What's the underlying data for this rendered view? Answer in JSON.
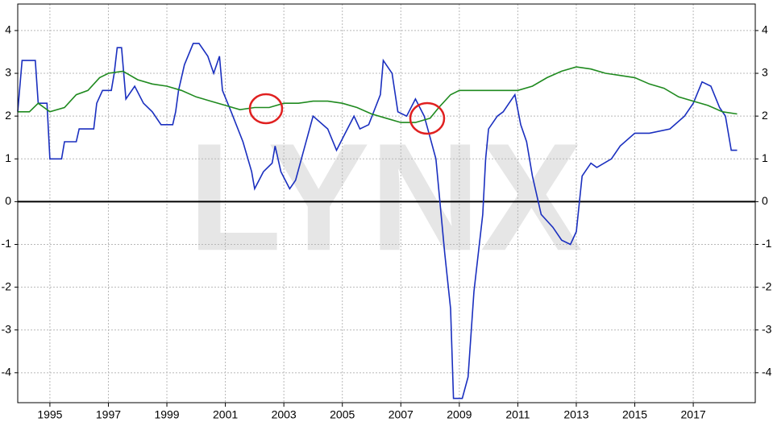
{
  "chart_data": {
    "type": "line",
    "watermark": "LYNX",
    "xlim": [
      1993.9,
      2019.12
    ],
    "xticks": [
      1995,
      1997,
      1999,
      2001,
      2003,
      2005,
      2007,
      2009,
      2011,
      2013,
      2015,
      2017
    ],
    "ylim": [
      -4.7,
      4.62
    ],
    "yticks": [
      -4,
      -3,
      -2,
      -1,
      0,
      1,
      2,
      3,
      4
    ],
    "grid": true,
    "series": [
      {
        "color": "#1a2fbf",
        "x": [
          1993.9,
          1994.05,
          1994.5,
          1994.6,
          1994.9,
          1995.0,
          1995.4,
          1995.5,
          1995.9,
          1996.0,
          1996.5,
          1996.6,
          1996.8,
          1997.1,
          1997.2,
          1997.3,
          1997.45,
          1997.6,
          1997.9,
          1998.2,
          1998.5,
          1998.8,
          1999.2,
          1999.3,
          1999.4,
          1999.6,
          1999.9,
          2000.1,
          2000.4,
          2000.6,
          2000.8,
          2000.9,
          2001.2,
          2001.6,
          2001.9,
          2002.0,
          2002.3,
          2002.6,
          2002.7,
          2002.9,
          2003.2,
          2003.4,
          2003.6,
          2004.0,
          2004.5,
          2004.8,
          2005.1,
          2005.4,
          2005.6,
          2005.9,
          2006.3,
          2006.4,
          2006.7,
          2006.9,
          2007.2,
          2007.5,
          2007.8,
          2008.0,
          2008.2,
          2008.5,
          2008.7,
          2008.8,
          2009.1,
          2009.3,
          2009.5,
          2009.8,
          2009.9,
          2010.0,
          2010.3,
          2010.5,
          2010.8,
          2010.9,
          2011.1,
          2011.3,
          2011.5,
          2011.8,
          2012.2,
          2012.5,
          2012.8,
          2013.0,
          2013.2,
          2013.5,
          2013.7,
          2014.2,
          2014.5,
          2015.0,
          2015.5,
          2016.2,
          2016.7,
          2017.0,
          2017.3,
          2017.6,
          2017.9,
          2018.1,
          2018.2,
          2018.3,
          2018.5
        ],
        "values": [
          2.1,
          3.3,
          3.3,
          2.3,
          2.3,
          1.0,
          1.0,
          1.4,
          1.4,
          1.7,
          1.7,
          2.3,
          2.6,
          2.6,
          3.0,
          3.6,
          3.6,
          2.4,
          2.7,
          2.3,
          2.1,
          1.8,
          1.8,
          2.1,
          2.6,
          3.2,
          3.7,
          3.7,
          3.4,
          3.0,
          3.4,
          2.6,
          2.1,
          1.4,
          0.7,
          0.3,
          0.7,
          0.9,
          1.3,
          0.7,
          0.3,
          0.5,
          1.0,
          2.0,
          1.7,
          1.2,
          1.6,
          2.0,
          1.7,
          1.8,
          2.5,
          3.3,
          3.0,
          2.1,
          2.0,
          2.4,
          2.0,
          1.5,
          1.0,
          -1.2,
          -2.5,
          -4.6,
          -4.6,
          -4.1,
          -2.1,
          -0.3,
          1.0,
          1.7,
          2.0,
          2.1,
          2.4,
          2.5,
          1.8,
          1.4,
          0.6,
          -0.3,
          -0.6,
          -0.9,
          -1.0,
          -0.7,
          0.6,
          0.9,
          0.8,
          1.0,
          1.3,
          1.6,
          1.6,
          1.7,
          2.0,
          2.3,
          2.8,
          2.7,
          2.2,
          2.0,
          1.6,
          1.2,
          1.2
        ]
      },
      {
        "color": "#1f8a1f",
        "x": [
          1993.9,
          1994.3,
          1994.6,
          1995.0,
          1995.5,
          1995.9,
          1996.3,
          1996.7,
          1997.0,
          1997.5,
          1998.0,
          1998.5,
          1999.0,
          1999.5,
          2000.0,
          2000.5,
          2001.0,
          2001.5,
          2002.0,
          2002.5,
          2003.0,
          2003.5,
          2004.0,
          2004.5,
          2005.0,
          2005.5,
          2006.0,
          2006.5,
          2007.0,
          2007.5,
          2008.0,
          2008.3,
          2008.7,
          2009.0,
          2009.5,
          2010.0,
          2010.5,
          2011.0,
          2011.5,
          2012.0,
          2012.5,
          2013.0,
          2013.5,
          2014.0,
          2014.5,
          2015.0,
          2015.5,
          2016.0,
          2016.5,
          2017.0,
          2017.5,
          2018.0,
          2018.5
        ],
        "values": [
          2.1,
          2.1,
          2.3,
          2.1,
          2.2,
          2.5,
          2.6,
          2.9,
          3.0,
          3.05,
          2.85,
          2.75,
          2.7,
          2.6,
          2.45,
          2.35,
          2.25,
          2.15,
          2.2,
          2.2,
          2.3,
          2.3,
          2.35,
          2.35,
          2.3,
          2.2,
          2.05,
          1.95,
          1.85,
          1.85,
          1.95,
          2.2,
          2.5,
          2.6,
          2.6,
          2.6,
          2.6,
          2.6,
          2.7,
          2.9,
          3.05,
          3.15,
          3.1,
          3.0,
          2.95,
          2.9,
          2.75,
          2.65,
          2.45,
          2.35,
          2.25,
          2.1,
          2.05
        ]
      }
    ]
  }
}
